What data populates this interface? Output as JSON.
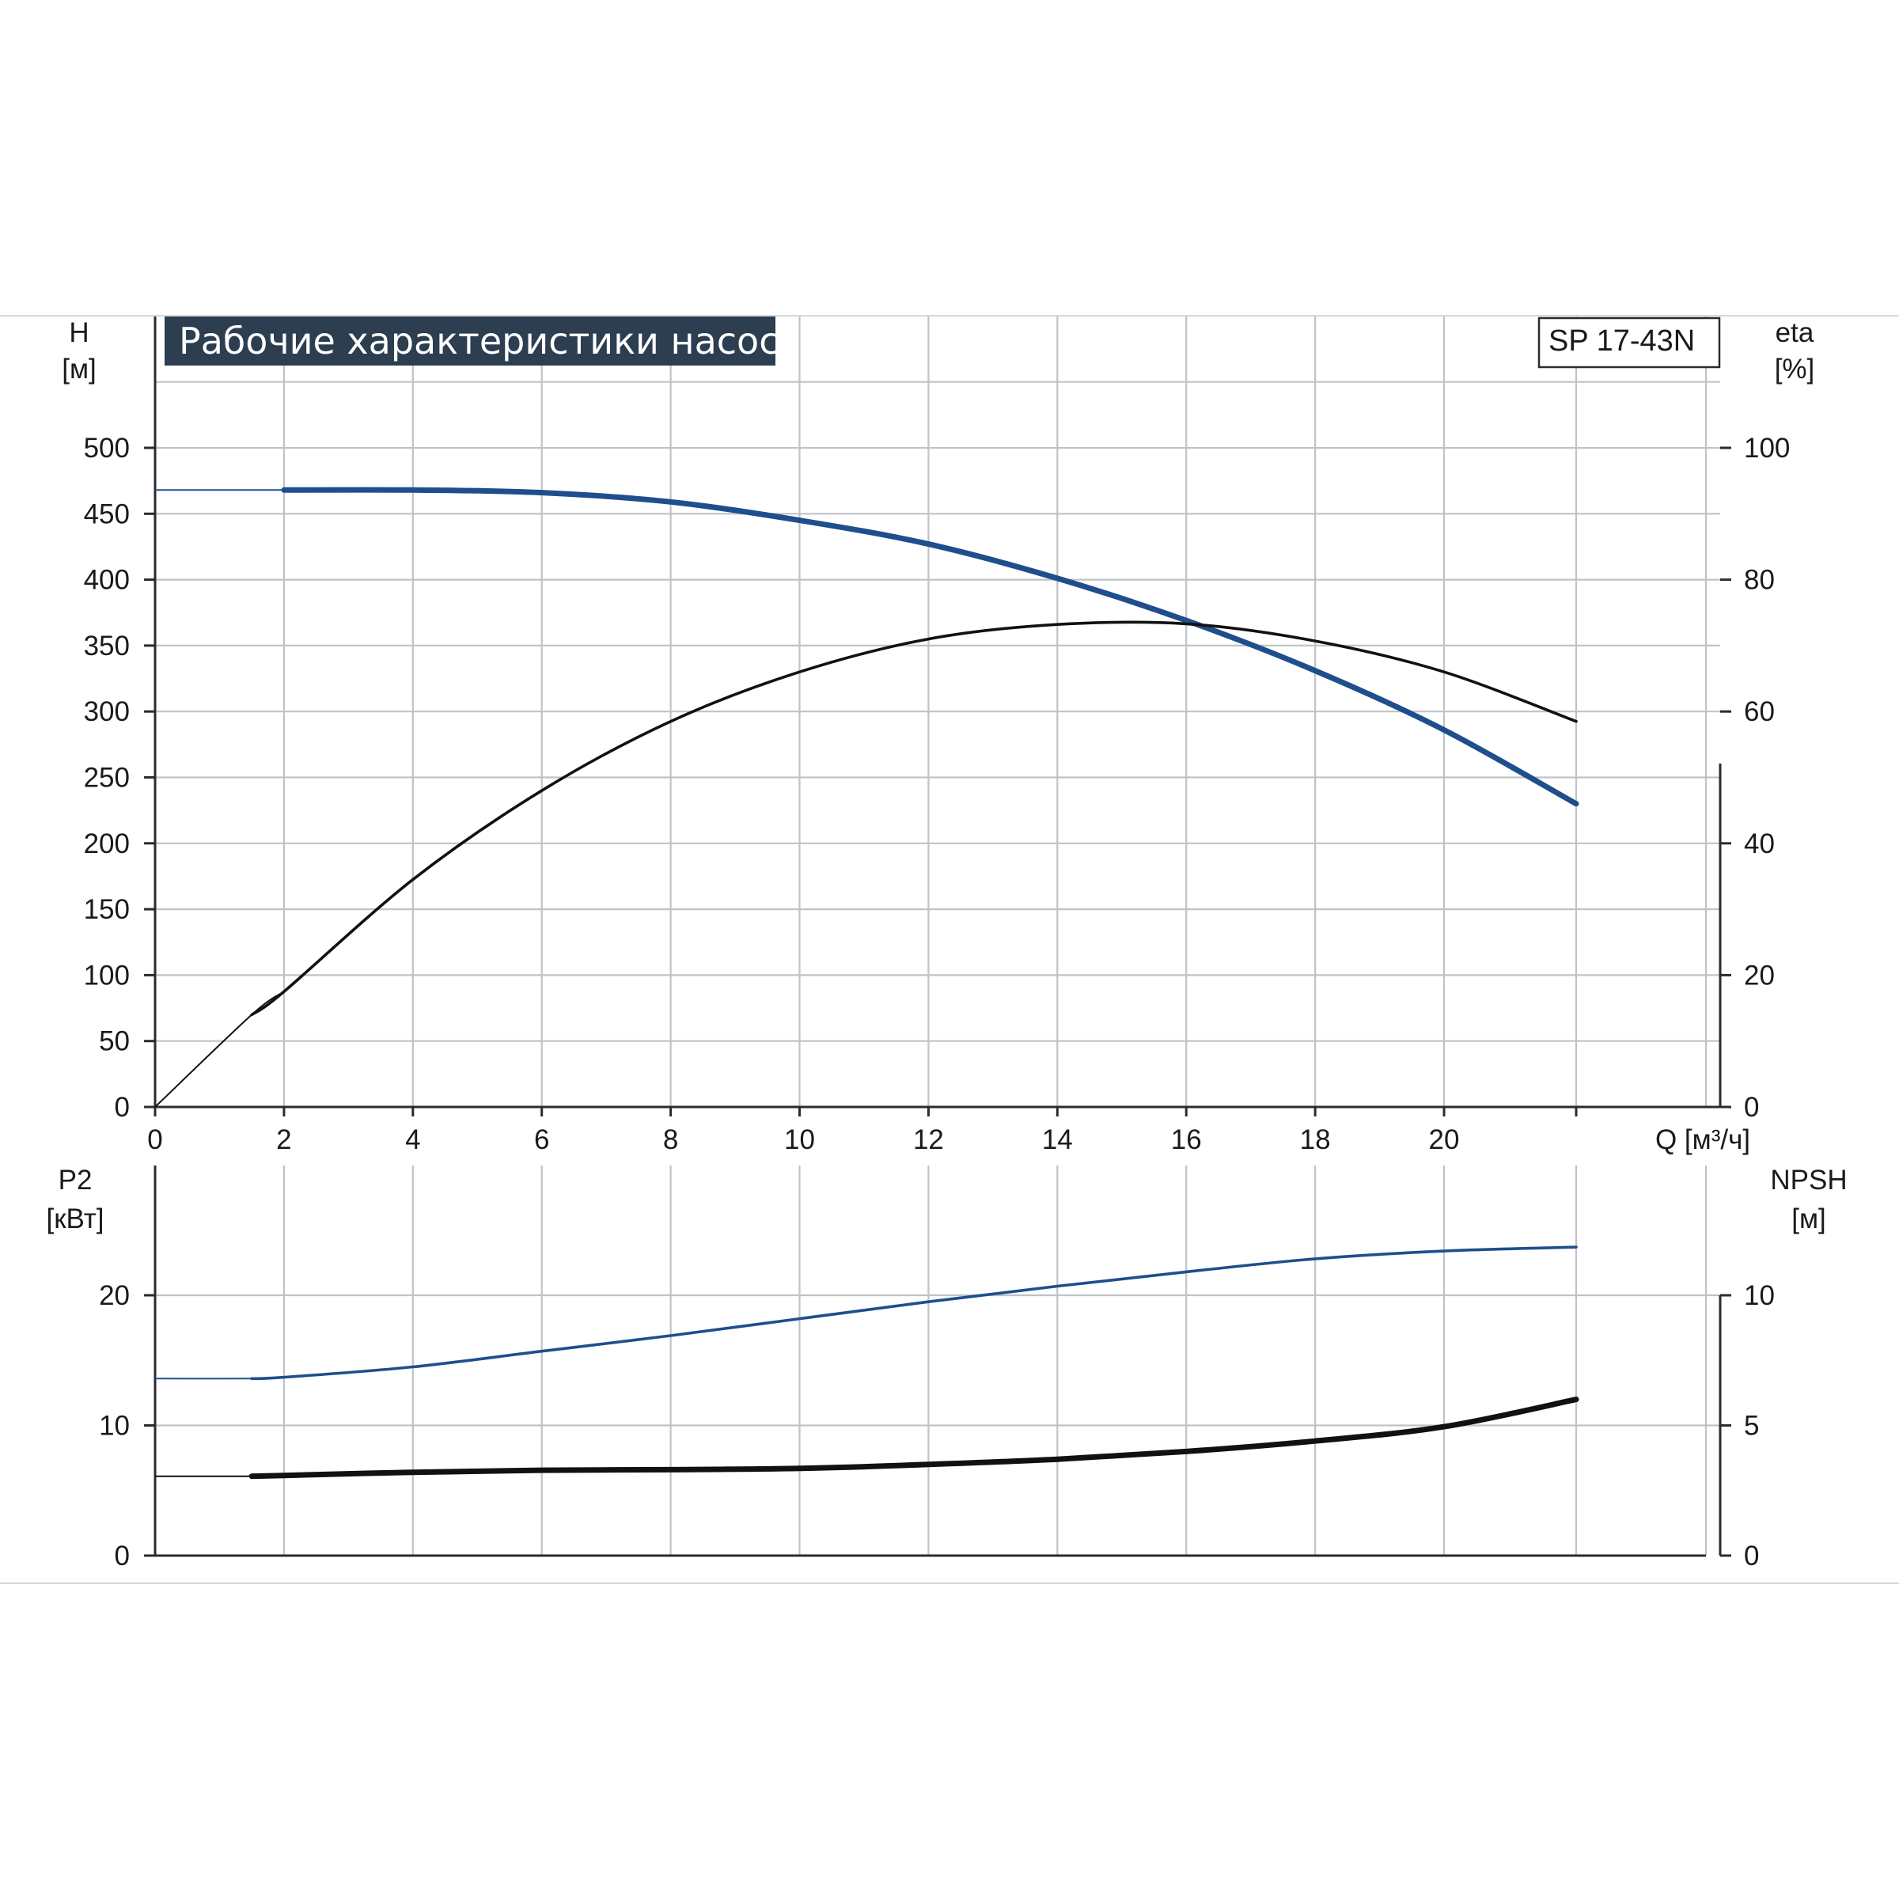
{
  "title": "Рабочие характеристики насоса",
  "model": "SP 17-43N",
  "colors": {
    "blue": "#1f4e8c",
    "black": "#111111",
    "grid": "#bfc3c8",
    "title_bg": "#2c3e50"
  },
  "chart_data": [
    {
      "type": "line",
      "name": "top",
      "xlabel": "Q [м³/ч]",
      "x_ticks": [
        "0",
        "2",
        "4",
        "6",
        "8",
        "10",
        "12",
        "14",
        "16",
        "18",
        "20"
      ],
      "xlim": [
        0,
        24.25
      ],
      "left_axis": {
        "label": [
          "H",
          "[м]"
        ],
        "ylim": [
          0,
          500
        ],
        "ticks": [
          "0",
          "50",
          "100",
          "150",
          "200",
          "250",
          "300",
          "350",
          "400",
          "450",
          "500"
        ]
      },
      "right_axis": {
        "label": [
          "eta",
          "[%]"
        ],
        "ylim": [
          0,
          100
        ],
        "ticks": [
          "0",
          "20",
          "40",
          "60",
          "80",
          "100"
        ]
      },
      "grid": true,
      "series": [
        {
          "axis": "left",
          "color": "blue",
          "thick": true,
          "start_x": 1.55,
          "points": [
            [
              0,
              468
            ],
            [
              2,
              468
            ],
            [
              4,
              468
            ],
            [
              6,
              466
            ],
            [
              8,
              459
            ],
            [
              10,
              445
            ],
            [
              12,
              427
            ],
            [
              14,
              401
            ],
            [
              16,
              369
            ],
            [
              18,
              331
            ],
            [
              20,
              286
            ],
            [
              22.05,
              230
            ]
          ]
        },
        {
          "axis": "right",
          "color": "black",
          "thick": false,
          "start_x": 1.55,
          "points": [
            [
              0,
              0
            ],
            [
              1.5,
              14
            ],
            [
              2,
              17.5
            ],
            [
              4,
              34.5
            ],
            [
              6,
              48
            ],
            [
              8,
              58.5
            ],
            [
              10,
              66
            ],
            [
              12,
              71
            ],
            [
              14,
              73.2
            ],
            [
              16,
              73.3
            ],
            [
              18,
              70.7
            ],
            [
              20,
              66
            ],
            [
              22.05,
              58.5
            ]
          ]
        }
      ]
    },
    {
      "type": "line",
      "name": "bottom",
      "xlim": [
        0,
        24.25
      ],
      "left_axis": {
        "label": [
          "P2",
          "[кВт]"
        ],
        "ylim": [
          0,
          30
        ],
        "ticks": [
          "0",
          "10",
          "20"
        ]
      },
      "right_axis": {
        "label": [
          "NPSH",
          "[м]"
        ],
        "ylim": [
          0,
          15
        ],
        "ticks": [
          "0",
          "5",
          "10"
        ]
      },
      "grid": true,
      "series": [
        {
          "axis": "left",
          "color": "blue",
          "thick": false,
          "start_x": 1.55,
          "points": [
            [
              0,
              13.6
            ],
            [
              1.5,
              13.6
            ],
            [
              2,
              13.7
            ],
            [
              4,
              14.5
            ],
            [
              6,
              15.7
            ],
            [
              8,
              16.9
            ],
            [
              10,
              18.2
            ],
            [
              12,
              19.5
            ],
            [
              14,
              20.7
            ],
            [
              16,
              21.8
            ],
            [
              18,
              22.8
            ],
            [
              20,
              23.4
            ],
            [
              22.05,
              23.7
            ]
          ]
        },
        {
          "axis": "right",
          "color": "black",
          "thick": true,
          "start_x": 1.55,
          "points": [
            [
              0,
              3.05
            ],
            [
              1.5,
              3.05
            ],
            [
              2,
              3.08
            ],
            [
              4,
              3.2
            ],
            [
              6,
              3.28
            ],
            [
              8,
              3.3
            ],
            [
              10,
              3.35
            ],
            [
              12,
              3.5
            ],
            [
              14,
              3.7
            ],
            [
              16,
              4
            ],
            [
              18,
              4.4
            ],
            [
              20,
              4.95
            ],
            [
              22.05,
              6
            ]
          ]
        }
      ]
    }
  ]
}
